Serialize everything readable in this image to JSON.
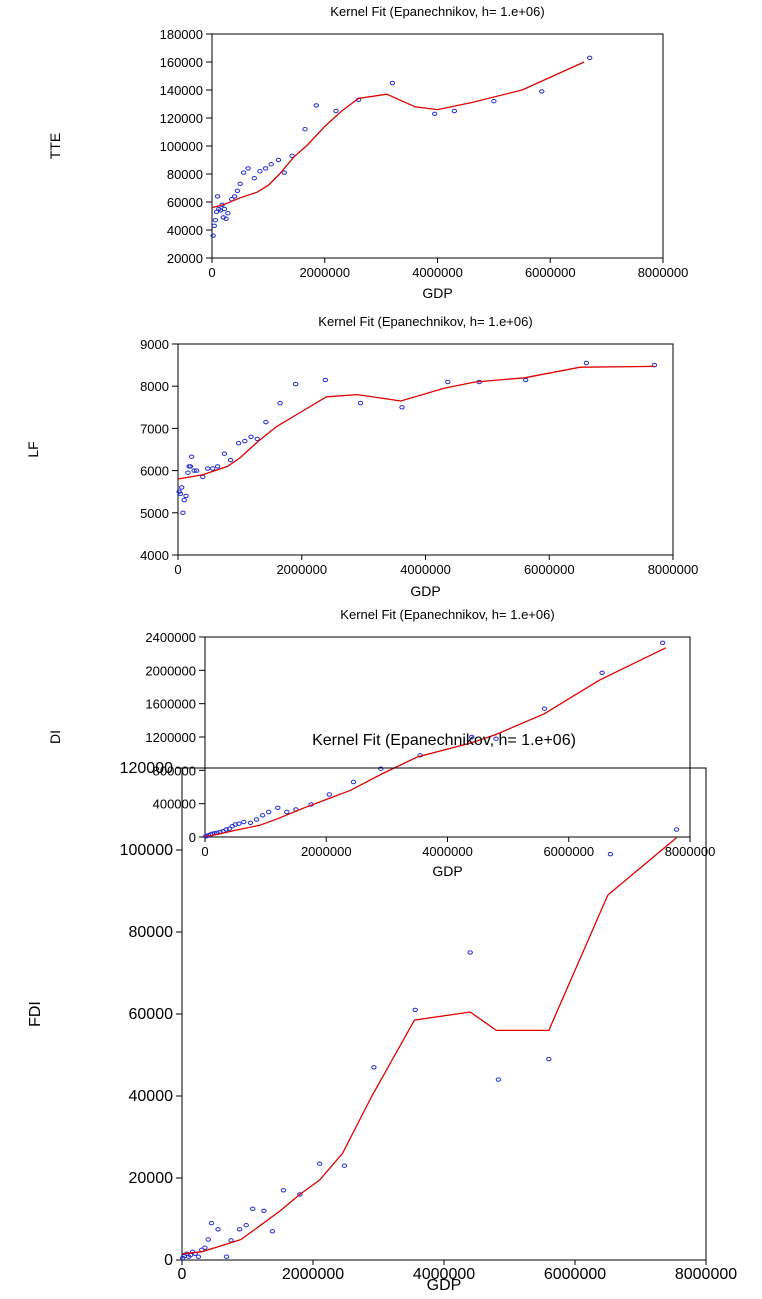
{
  "colors": {
    "points": "#1f2bd6",
    "fit": "#e00000",
    "axes": "#000000"
  },
  "chart_data": [
    {
      "type": "scatter",
      "title": "Kernel Fit (Epanechnikov, h= 1.e+06)",
      "xlabel": "GDP",
      "ylabel": "TTE",
      "xlim": [
        0,
        8000000
      ],
      "ylim": [
        20000,
        180000
      ],
      "xticks": [
        "0",
        "2000000",
        "4000000",
        "6000000",
        "8000000"
      ],
      "yticks": [
        "20000",
        "40000",
        "60000",
        "80000",
        "100000",
        "120000",
        "140000",
        "160000",
        "180000"
      ],
      "series": [
        {
          "kind": "points",
          "points": [
            [
              20000,
              36000
            ],
            [
              40000,
              43000
            ],
            [
              60000,
              47000
            ],
            [
              80000,
              53000
            ],
            [
              100000,
              64000
            ],
            [
              120000,
              55000
            ],
            [
              150000,
              54000
            ],
            [
              180000,
              58000
            ],
            [
              200000,
              49000
            ],
            [
              220000,
              55000
            ],
            [
              250000,
              48000
            ],
            [
              280000,
              52000
            ],
            [
              350000,
              62000
            ],
            [
              400000,
              64000
            ],
            [
              450000,
              68000
            ],
            [
              500000,
              73000
            ],
            [
              560000,
              81000
            ],
            [
              640000,
              84000
            ],
            [
              750000,
              77000
            ],
            [
              850000,
              82000
            ],
            [
              950000,
              84000
            ],
            [
              1050000,
              87000
            ],
            [
              1180000,
              90000
            ],
            [
              1280000,
              81000
            ],
            [
              1420000,
              93000
            ],
            [
              1650000,
              112000
            ],
            [
              1850000,
              129000
            ],
            [
              2200000,
              125000
            ],
            [
              2600000,
              133000
            ],
            [
              3200000,
              145000
            ],
            [
              3950000,
              123000
            ],
            [
              4300000,
              125000
            ],
            [
              5000000,
              132000
            ],
            [
              5850000,
              139000
            ],
            [
              6700000,
              163000
            ]
          ]
        },
        {
          "kind": "line",
          "points": [
            [
              0,
              56000
            ],
            [
              200000,
              58000
            ],
            [
              500000,
              63000
            ],
            [
              800000,
              67000
            ],
            [
              1000000,
              72000
            ],
            [
              1200000,
              80000
            ],
            [
              1450000,
              92000
            ],
            [
              1700000,
              101000
            ],
            [
              2000000,
              114000
            ],
            [
              2300000,
              125000
            ],
            [
              2600000,
              134000
            ],
            [
              3100000,
              137000
            ],
            [
              3600000,
              128000
            ],
            [
              4000000,
              126000
            ],
            [
              4600000,
              131000
            ],
            [
              5500000,
              140000
            ],
            [
              6600000,
              160000
            ]
          ]
        }
      ]
    },
    {
      "type": "scatter",
      "title": "Kernel Fit (Epanechnikov, h= 1.e+06)",
      "xlabel": "GDP",
      "ylabel": "LF",
      "xlim": [
        0,
        8000000
      ],
      "ylim": [
        4000,
        9000
      ],
      "xticks": [
        "0",
        "2000000",
        "4000000",
        "6000000",
        "8000000"
      ],
      "yticks": [
        "4000",
        "5000",
        "6000",
        "7000",
        "8000",
        "9000"
      ],
      "series": [
        {
          "kind": "points",
          "points": [
            [
              20000,
              5500
            ],
            [
              40000,
              5450
            ],
            [
              60000,
              5600
            ],
            [
              80000,
              5000
            ],
            [
              100000,
              5300
            ],
            [
              130000,
              5400
            ],
            [
              160000,
              5950
            ],
            [
              180000,
              6100
            ],
            [
              200000,
              6100
            ],
            [
              220000,
              6330
            ],
            [
              260000,
              6000
            ],
            [
              300000,
              6000
            ],
            [
              400000,
              5850
            ],
            [
              480000,
              6050
            ],
            [
              560000,
              6050
            ],
            [
              640000,
              6100
            ],
            [
              750000,
              6400
            ],
            [
              850000,
              6250
            ],
            [
              980000,
              6650
            ],
            [
              1080000,
              6700
            ],
            [
              1180000,
              6800
            ],
            [
              1280000,
              6750
            ],
            [
              1420000,
              7150
            ],
            [
              1650000,
              7600
            ],
            [
              1900000,
              8050
            ],
            [
              2380000,
              8150
            ],
            [
              2950000,
              7600
            ],
            [
              3620000,
              7500
            ],
            [
              4360000,
              8100
            ],
            [
              4870000,
              8100
            ],
            [
              5620000,
              8150
            ],
            [
              6600000,
              8550
            ],
            [
              7700000,
              8500
            ]
          ]
        },
        {
          "kind": "line",
          "points": [
            [
              0,
              5800
            ],
            [
              400000,
              5900
            ],
            [
              800000,
              6100
            ],
            [
              1000000,
              6300
            ],
            [
              1300000,
              6700
            ],
            [
              1600000,
              7050
            ],
            [
              2000000,
              7400
            ],
            [
              2400000,
              7750
            ],
            [
              2900000,
              7800
            ],
            [
              3600000,
              7650
            ],
            [
              4300000,
              7950
            ],
            [
              4800000,
              8100
            ],
            [
              5600000,
              8200
            ],
            [
              6500000,
              8450
            ],
            [
              7700000,
              8470
            ]
          ]
        }
      ]
    },
    {
      "type": "scatter",
      "title": "Kernel Fit (Epanechnikov, h= 1.e+06)",
      "xlabel": "GDP",
      "ylabel": "DI",
      "xlim": [
        0,
        8000000
      ],
      "ylim": [
        0,
        2400000
      ],
      "xticks": [
        "0",
        "2000000",
        "4000000",
        "6000000",
        "8000000"
      ],
      "yticks": [
        "0",
        "400000",
        "800000",
        "1200000",
        "1600000",
        "2000000",
        "2400000"
      ],
      "series": [
        {
          "kind": "points",
          "points": [
            [
              10000,
              8000
            ],
            [
              30000,
              12000
            ],
            [
              60000,
              20000
            ],
            [
              90000,
              30000
            ],
            [
              120000,
              40000
            ],
            [
              160000,
              45000
            ],
            [
              200000,
              50000
            ],
            [
              250000,
              60000
            ],
            [
              300000,
              70000
            ],
            [
              350000,
              90000
            ],
            [
              400000,
              100000
            ],
            [
              450000,
              130000
            ],
            [
              500000,
              150000
            ],
            [
              560000,
              160000
            ],
            [
              640000,
              180000
            ],
            [
              750000,
              170000
            ],
            [
              850000,
              210000
            ],
            [
              950000,
              260000
            ],
            [
              1050000,
              300000
            ],
            [
              1200000,
              350000
            ],
            [
              1350000,
              300000
            ],
            [
              1500000,
              330000
            ],
            [
              1750000,
              390000
            ],
            [
              2050000,
              510000
            ],
            [
              2450000,
              660000
            ],
            [
              2900000,
              820000
            ],
            [
              3550000,
              980000
            ],
            [
              4400000,
              1200000
            ],
            [
              4800000,
              1180000
            ],
            [
              5600000,
              1540000
            ],
            [
              6550000,
              1970000
            ],
            [
              7550000,
              2330000
            ]
          ]
        },
        {
          "kind": "line",
          "points": [
            [
              0,
              5000
            ],
            [
              200000,
              30000
            ],
            [
              500000,
              80000
            ],
            [
              900000,
              140000
            ],
            [
              1200000,
              220000
            ],
            [
              1600000,
              340000
            ],
            [
              2000000,
              450000
            ],
            [
              2400000,
              560000
            ],
            [
              2900000,
              750000
            ],
            [
              3500000,
              960000
            ],
            [
              4400000,
              1130000
            ],
            [
              4800000,
              1230000
            ],
            [
              5600000,
              1480000
            ],
            [
              6500000,
              1880000
            ],
            [
              7600000,
              2270000
            ]
          ]
        }
      ]
    },
    {
      "type": "scatter",
      "title": "Kernel Fit (Epanechnikov, h= 1.e+06)",
      "xlabel": "GDP",
      "ylabel": "FDI",
      "xlim": [
        0,
        8000000
      ],
      "ylim": [
        0,
        120000
      ],
      "xticks": [
        "0",
        "2000000",
        "4000000",
        "6000000",
        "8000000"
      ],
      "yticks": [
        "0",
        "20000",
        "40000",
        "60000",
        "80000",
        "100000",
        "120000"
      ],
      "series": [
        {
          "kind": "points",
          "points": [
            [
              10000,
              500
            ],
            [
              40000,
              1000
            ],
            [
              70000,
              1500
            ],
            [
              100000,
              800
            ],
            [
              130000,
              1200
            ],
            [
              160000,
              2000
            ],
            [
              200000,
              1500
            ],
            [
              250000,
              800
            ],
            [
              300000,
              2500
            ],
            [
              350000,
              3000
            ],
            [
              400000,
              5000
            ],
            [
              450000,
              9000
            ],
            [
              550000,
              7500
            ],
            [
              680000,
              800
            ],
            [
              750000,
              4800
            ],
            [
              880000,
              7500
            ],
            [
              980000,
              8500
            ],
            [
              1080000,
              12500
            ],
            [
              1250000,
              12000
            ],
            [
              1380000,
              7000
            ],
            [
              1550000,
              17000
            ],
            [
              1800000,
              16000
            ],
            [
              2100000,
              23500
            ],
            [
              2480000,
              23000
            ],
            [
              2930000,
              47000
            ],
            [
              3560000,
              61000
            ],
            [
              4400000,
              75000
            ],
            [
              4830000,
              44000
            ],
            [
              5600000,
              49000
            ],
            [
              6540000,
              99000
            ],
            [
              7550000,
              105000
            ]
          ]
        },
        {
          "kind": "line",
          "points": [
            [
              0,
              1500
            ],
            [
              300000,
              2000
            ],
            [
              600000,
              3500
            ],
            [
              900000,
              5000
            ],
            [
              1200000,
              8500
            ],
            [
              1500000,
              12000
            ],
            [
              1800000,
              16000
            ],
            [
              2100000,
              19500
            ],
            [
              2450000,
              26000
            ],
            [
              2900000,
              40000
            ],
            [
              3550000,
              58500
            ],
            [
              4400000,
              60500
            ],
            [
              4800000,
              56000
            ],
            [
              5600000,
              56000
            ],
            [
              6500000,
              89000
            ],
            [
              7550000,
              103000
            ]
          ]
        }
      ]
    }
  ]
}
